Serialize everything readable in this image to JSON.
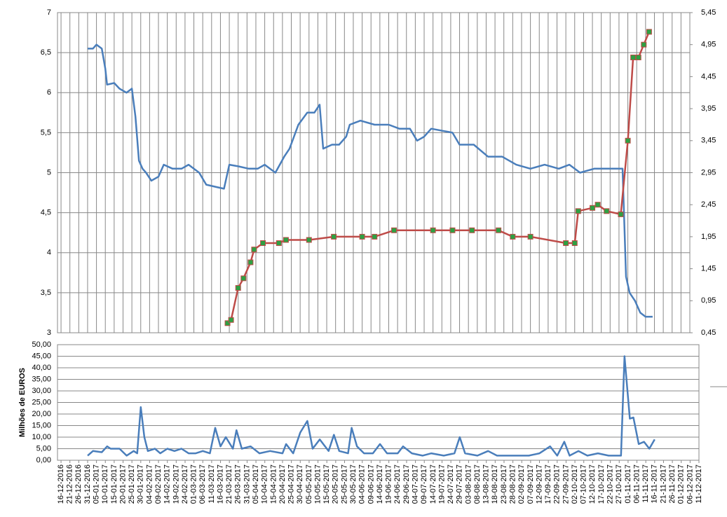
{
  "chart_data": [
    {
      "type": "line",
      "xlim": [
        "14-12-2016",
        "06-12-2017"
      ],
      "ylim": [
        3,
        7
      ],
      "yticks": [
        3,
        {
          "value": 3.5,
          "label": "3,5"
        },
        4,
        {
          "value": 4.5,
          "label": "4,5"
        },
        5,
        {
          "value": 5.5,
          "label": "5,5"
        },
        6,
        {
          "value": 6.5,
          "label": "6,5"
        },
        7
      ],
      "y2lim": [
        0.45,
        5.45
      ],
      "y2ticks": [
        {
          "value": 0.45,
          "label": "0,45"
        },
        {
          "value": 0.95,
          "label": "0,95"
        },
        {
          "value": 1.45,
          "label": "1,45"
        },
        {
          "value": 1.95,
          "label": "1,95"
        },
        {
          "value": 2.45,
          "label": "2,45"
        },
        {
          "value": 2.95,
          "label": "2,95"
        },
        {
          "value": 3.45,
          "label": "3,45"
        },
        {
          "value": 3.95,
          "label": "3,95"
        },
        {
          "value": 4.45,
          "label": "4,45"
        },
        {
          "value": 4.95,
          "label": "4,95"
        },
        {
          "value": 5.45,
          "label": "5,45"
        }
      ],
      "grid": true,
      "series": [
        {
          "color": "#4a7ebb",
          "x": [
            "31-12-2016",
            "03-01-2017",
            "05-01-2017",
            "08-01-2017",
            "10-01-2017",
            "11-01-2017",
            "15-01-2017",
            "18-01-2017",
            "22-01-2017",
            "25-01-2017",
            "27-01-2017",
            "29-01-2017",
            "31-01-2017",
            "02-02-2017",
            "05-02-2017",
            "09-02-2017",
            "12-02-2017",
            "17-02-2017",
            "22-02-2017",
            "26-02-2017",
            "04-03-2017",
            "08-03-2017",
            "14-03-2017",
            "18-03-2017",
            "21-03-2017",
            "26-03-2017",
            "01-04-2017",
            "06-04-2017",
            "10-04-2017",
            "16-04-2017",
            "21-04-2017",
            "24-04-2017",
            "29-04-2017",
            "04-05-2017",
            "08-05-2017",
            "11-05-2017",
            "13-05-2017",
            "18-05-2017",
            "22-05-2017",
            "26-05-2017",
            "28-05-2017",
            "03-06-2017",
            "11-06-2017",
            "19-06-2017",
            "25-06-2017",
            "01-07-2017",
            "05-07-2017",
            "09-07-2017",
            "13-07-2017",
            "25-07-2017",
            "29-07-2017",
            "06-08-2017",
            "14-08-2017",
            "22-08-2017",
            "30-08-2017",
            "07-09-2017",
            "15-09-2017",
            "23-09-2017",
            "29-09-2017",
            "05-10-2017",
            "13-10-2017",
            "21-10-2017",
            "29-10-2017",
            "31-10-2017",
            "02-11-2017",
            "05-11-2017",
            "08-11-2017",
            "11-11-2017",
            "15-11-2017"
          ],
          "values": [
            6.55,
            6.55,
            6.6,
            6.55,
            6.3,
            6.1,
            6.12,
            6.05,
            6.0,
            6.05,
            5.7,
            5.15,
            5.05,
            5.0,
            4.9,
            4.95,
            5.1,
            5.05,
            5.05,
            5.1,
            5.0,
            4.85,
            4.82,
            4.8,
            5.1,
            5.08,
            5.05,
            5.05,
            5.1,
            5.0,
            5.2,
            5.3,
            5.6,
            5.75,
            5.75,
            5.85,
            5.3,
            5.35,
            5.35,
            5.45,
            5.6,
            5.65,
            5.6,
            5.6,
            5.55,
            5.55,
            5.4,
            5.45,
            5.55,
            5.5,
            5.35,
            5.35,
            5.2,
            5.2,
            5.1,
            5.05,
            5.1,
            5.05,
            5.1,
            5.0,
            5.05,
            5.05,
            5.05,
            3.7,
            3.5,
            3.4,
            3.25,
            3.2,
            3.2
          ]
        },
        {
          "color": "#be4b48",
          "axis": "y2",
          "marker_color": "#2ea043",
          "x": [
            "20-03-2017",
            "22-03-2017",
            "26-03-2017",
            "29-03-2017",
            "02-04-2017",
            "04-04-2017",
            "09-04-2017",
            "18-04-2017",
            "22-04-2017",
            "05-05-2017",
            "19-05-2017",
            "04-06-2017",
            "11-06-2017",
            "22-06-2017",
            "14-07-2017",
            "25-07-2017",
            "05-08-2017",
            "20-08-2017",
            "28-08-2017",
            "07-09-2017",
            "27-09-2017",
            "02-10-2017",
            "04-10-2017",
            "12-10-2017",
            "15-10-2017",
            "20-10-2017",
            "28-10-2017",
            "01-11-2017",
            "04-11-2017",
            "07-11-2017",
            "10-11-2017",
            "13-11-2017"
          ],
          "values": [
            0.6,
            0.65,
            1.15,
            1.3,
            1.55,
            1.75,
            1.85,
            1.85,
            1.9,
            1.9,
            1.95,
            1.95,
            1.95,
            2.05,
            2.05,
            2.05,
            2.05,
            2.05,
            1.95,
            1.95,
            1.85,
            1.85,
            2.35,
            2.4,
            2.45,
            2.35,
            2.3,
            3.45,
            4.75,
            4.75,
            4.95,
            5.15
          ]
        }
      ]
    },
    {
      "type": "line",
      "ylabel": "Milhões de EUROS",
      "xlim": [
        "14-12-2016",
        "11-12-2017"
      ],
      "xticks": [
        "16-12-2016",
        "21-12-2016",
        "26-12-2016",
        "31-12-2016",
        "05-01-2017",
        "10-01-2017",
        "15-01-2017",
        "20-01-2017",
        "25-01-2017",
        "30-01-2017",
        "04-02-2017",
        "09-02-2017",
        "14-02-2017",
        "19-02-2017",
        "24-02-2017",
        "01-03-2017",
        "06-03-2017",
        "11-03-2017",
        "16-03-2017",
        "21-03-2017",
        "26-03-2017",
        "31-03-2017",
        "05-04-2017",
        "10-04-2017",
        "15-04-2017",
        "20-04-2017",
        "25-04-2017",
        "30-04-2017",
        "05-05-2017",
        "10-05-2017",
        "15-05-2017",
        "20-05-2017",
        "25-05-2017",
        "30-05-2017",
        "04-06-2017",
        "09-06-2017",
        "14-06-2017",
        "19-06-2017",
        "24-06-2017",
        "29-06-2017",
        "04-07-2017",
        "09-07-2017",
        "14-07-2017",
        "19-07-2017",
        "24-07-2017",
        "29-07-2017",
        "03-08-2017",
        "08-08-2017",
        "13-08-2017",
        "18-08-2017",
        "23-08-2017",
        "28-08-2017",
        "02-09-2017",
        "07-09-2017",
        "12-09-2017",
        "17-09-2017",
        "22-09-2017",
        "27-09-2017",
        "02-10-2017",
        "07-10-2017",
        "12-10-2017",
        "17-10-2017",
        "22-10-2017",
        "27-10-2017",
        "01-11-2017",
        "06-11-2017",
        "11-11-2017",
        "16-11-2017",
        "21-11-2017",
        "26-11-2017",
        "01-12-2017",
        "06-12-2017",
        "11-12-2017"
      ],
      "ylim": [
        0,
        50
      ],
      "yticks": [
        {
          "value": 0,
          "label": "0,00"
        },
        {
          "value": 5,
          "label": "5,00"
        },
        {
          "value": 10,
          "label": "10,00"
        },
        {
          "value": 15,
          "label": "15,00"
        },
        {
          "value": 20,
          "label": "20,00"
        },
        {
          "value": 25,
          "label": "25,00"
        },
        {
          "value": 30,
          "label": "30,00"
        },
        {
          "value": 35,
          "label": "35,00"
        },
        {
          "value": 40,
          "label": "40,00"
        },
        {
          "value": 45,
          "label": "45,00"
        },
        {
          "value": 50,
          "label": "50,00"
        }
      ],
      "grid": true,
      "series": [
        {
          "color": "#4a7ebb",
          "x": [
            "31-12-2016",
            "03-01-2017",
            "08-01-2017",
            "11-01-2017",
            "13-01-2017",
            "18-01-2017",
            "22-01-2017",
            "26-01-2017",
            "28-01-2017",
            "30-01-2017",
            "01-02-2017",
            "03-02-2017",
            "07-02-2017",
            "10-02-2017",
            "14-02-2017",
            "18-02-2017",
            "22-02-2017",
            "26-02-2017",
            "02-03-2017",
            "06-03-2017",
            "10-03-2017",
            "13-03-2017",
            "16-03-2017",
            "19-03-2017",
            "23-03-2017",
            "25-03-2017",
            "28-03-2017",
            "02-04-2017",
            "07-04-2017",
            "13-04-2017",
            "20-04-2017",
            "22-04-2017",
            "26-04-2017",
            "30-04-2017",
            "04-05-2017",
            "07-05-2017",
            "11-05-2017",
            "16-05-2017",
            "19-05-2017",
            "22-05-2017",
            "27-05-2017",
            "29-05-2017",
            "01-06-2017",
            "05-06-2017",
            "10-06-2017",
            "14-06-2017",
            "18-06-2017",
            "24-06-2017",
            "27-06-2017",
            "02-07-2017",
            "08-07-2017",
            "13-07-2017",
            "20-07-2017",
            "26-07-2017",
            "29-07-2017",
            "01-08-2017",
            "08-08-2017",
            "14-08-2017",
            "19-08-2017",
            "25-08-2017",
            "31-08-2017",
            "06-09-2017",
            "12-09-2017",
            "18-09-2017",
            "22-09-2017",
            "26-09-2017",
            "29-09-2017",
            "04-10-2017",
            "09-10-2017",
            "15-10-2017",
            "21-10-2017",
            "28-10-2017",
            "30-10-2017",
            "02-11-2017",
            "04-11-2017",
            "07-11-2017",
            "10-11-2017",
            "13-11-2017",
            "16-11-2017"
          ],
          "values": [
            2,
            4,
            3.5,
            6,
            5,
            5,
            2,
            4,
            3,
            23,
            10,
            4,
            5,
            3,
            5,
            4,
            5,
            3,
            3,
            4,
            3,
            14,
            6,
            10,
            5,
            13,
            5,
            6,
            3,
            4,
            3,
            7,
            3,
            12,
            17,
            5,
            9,
            4,
            11,
            4,
            3,
            14,
            6,
            3,
            3,
            7,
            3,
            3,
            6,
            3,
            2,
            3,
            2,
            3,
            10,
            3,
            2,
            4,
            2,
            2,
            2,
            2,
            3,
            6,
            2,
            8,
            2,
            4,
            2,
            3,
            2,
            2,
            45,
            18,
            18.5,
            7,
            8,
            5,
            9
          ]
        }
      ]
    }
  ]
}
